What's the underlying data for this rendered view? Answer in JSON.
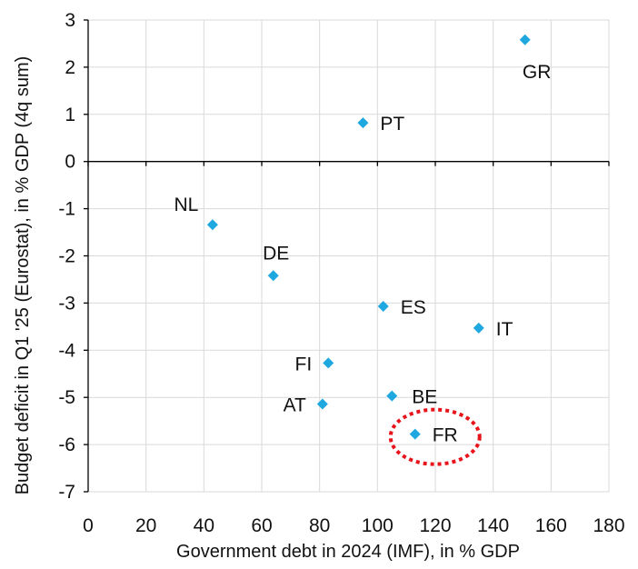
{
  "chart_data": {
    "type": "scatter",
    "title": "",
    "xlabel": "Government debt in 2024 (IMF), in % GDP",
    "ylabel": "Budget deficit in Q1 '25 (Eurostat), in % GDP (4q sum)",
    "xlim": [
      0,
      180
    ],
    "ylim": [
      -7,
      3
    ],
    "xticks": [
      0,
      20,
      40,
      60,
      80,
      100,
      120,
      140,
      160,
      180
    ],
    "yticks": [
      3,
      2,
      1,
      0,
      -1,
      -2,
      -3,
      -4,
      -5,
      -6,
      -7
    ],
    "grid": true,
    "marker_color": "#1fa8e0",
    "highlight_color": "#e8141b",
    "points": [
      {
        "label": "GR",
        "x": 151,
        "y": 2.58,
        "label_pos": "below"
      },
      {
        "label": "PT",
        "x": 95,
        "y": 0.82,
        "label_pos": "right"
      },
      {
        "label": "NL",
        "x": 43,
        "y": -1.34,
        "label_pos": "above-left"
      },
      {
        "label": "DE",
        "x": 64,
        "y": -2.42,
        "label_pos": "above"
      },
      {
        "label": "ES",
        "x": 102,
        "y": -3.07,
        "label_pos": "right"
      },
      {
        "label": "IT",
        "x": 135,
        "y": -3.53,
        "label_pos": "right"
      },
      {
        "label": "FI",
        "x": 83,
        "y": -4.27,
        "label_pos": "left"
      },
      {
        "label": "BE",
        "x": 105,
        "y": -4.97,
        "label_pos": "above-right"
      },
      {
        "label": "AT",
        "x": 81,
        "y": -5.14,
        "label_pos": "left"
      },
      {
        "label": "FR",
        "x": 113,
        "y": -5.78,
        "label_pos": "right",
        "highlight": true
      }
    ]
  }
}
